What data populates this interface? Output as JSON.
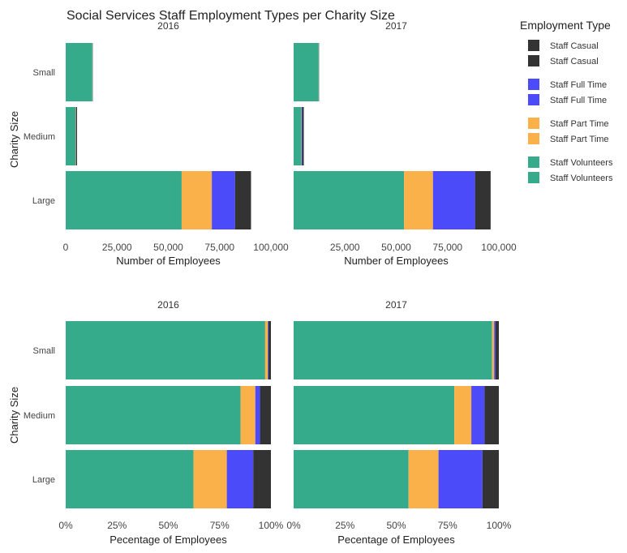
{
  "chart_data": {
    "title": "Social Services Staff Employment Types per Charity Size",
    "ylabel": "Charity Size",
    "categories": [
      "Small",
      "Medium",
      "Large"
    ],
    "series_names": [
      "Staff Volunteers",
      "Staff Part Time",
      "Staff Full Time",
      "Staff Casual"
    ],
    "colors": {
      "Staff Volunteers": "#35AB8B",
      "Staff Part Time": "#FBB14A",
      "Staff Full Time": "#4B4BF9",
      "Staff Casual": "#333333"
    },
    "legend": {
      "title": "Employment Type",
      "position": "right",
      "entries": [
        "Staff Casual",
        "Staff Casual",
        "Staff Full Time",
        "Staff Full Time",
        "Staff Part Time",
        "Staff Part Time",
        "Staff Volunteers",
        "Staff Volunteers"
      ]
    },
    "panels": [
      {
        "type": "bar",
        "orientation": "horizontal",
        "stacked": true,
        "facet": "2016",
        "xlabel": "Number of Employees",
        "xlim": [
          0,
          100000
        ],
        "xticks": [
          0,
          25000,
          50000,
          75000,
          100000
        ],
        "xtick_labels": [
          "0",
          "25,000",
          "50,000",
          "75,000",
          "100,000"
        ],
        "series": [
          {
            "name": "Staff Volunteers",
            "values": [
              13000,
              4800,
              56500
            ]
          },
          {
            "name": "Staff Part Time",
            "values": [
              50,
              150,
              14700
            ]
          },
          {
            "name": "Staff Full Time",
            "values": [
              30,
              80,
              11300
            ]
          },
          {
            "name": "Staff Casual",
            "values": [
              120,
              500,
              7800
            ]
          }
        ]
      },
      {
        "type": "bar",
        "orientation": "horizontal",
        "stacked": true,
        "facet": "2017",
        "xlabel": "Number of Employees",
        "xlim": [
          0,
          100000
        ],
        "xticks": [
          25000,
          50000,
          75000,
          100000
        ],
        "xtick_labels": [
          "25,000",
          "50,000",
          "75,000",
          "100,000"
        ],
        "series": [
          {
            "name": "Staff Volunteers",
            "values": [
              12200,
              3700,
              53800
            ]
          },
          {
            "name": "Staff Part Time",
            "values": [
              40,
              150,
              14100
            ]
          },
          {
            "name": "Staff Full Time",
            "values": [
              40,
              300,
              20500
            ]
          },
          {
            "name": "Staff Casual",
            "values": [
              120,
              800,
              7600
            ]
          }
        ]
      },
      {
        "type": "bar",
        "orientation": "horizontal",
        "stacked": true,
        "facet": "2016",
        "xlabel": "Pecentage of Employees",
        "xlim": [
          0,
          100
        ],
        "xticks": [
          0,
          25,
          50,
          75,
          100
        ],
        "xtick_labels": [
          "0%",
          "25%",
          "50%",
          "75%",
          "100%"
        ],
        "series": [
          {
            "name": "Staff Volunteers",
            "values": [
              97.2,
              85.2,
              62.3
            ]
          },
          {
            "name": "Staff Part Time",
            "values": [
              1.3,
              7.2,
              16.2
            ]
          },
          {
            "name": "Staff Full Time",
            "values": [
              0.3,
              2.3,
              12.9
            ]
          },
          {
            "name": "Staff Casual",
            "values": [
              1.2,
              5.3,
              8.6
            ]
          }
        ]
      },
      {
        "type": "bar",
        "orientation": "horizontal",
        "stacked": true,
        "facet": "2017",
        "xlabel": "Pecentage of Employees",
        "xlim": [
          0,
          100
        ],
        "xticks": [
          0,
          25,
          50,
          75,
          100
        ],
        "xtick_labels": [
          "0%",
          "25%",
          "50%",
          "75%",
          "100%"
        ],
        "series": [
          {
            "name": "Staff Volunteers",
            "values": [
              96.7,
              78.3,
              56.0
            ]
          },
          {
            "name": "Staff Part Time",
            "values": [
              1.0,
              8.3,
              14.6
            ]
          },
          {
            "name": "Staff Full Time",
            "values": [
              0.7,
              6.4,
              21.4
            ]
          },
          {
            "name": "Staff Casual",
            "values": [
              1.6,
              7.0,
              8.0
            ]
          }
        ]
      }
    ]
  }
}
